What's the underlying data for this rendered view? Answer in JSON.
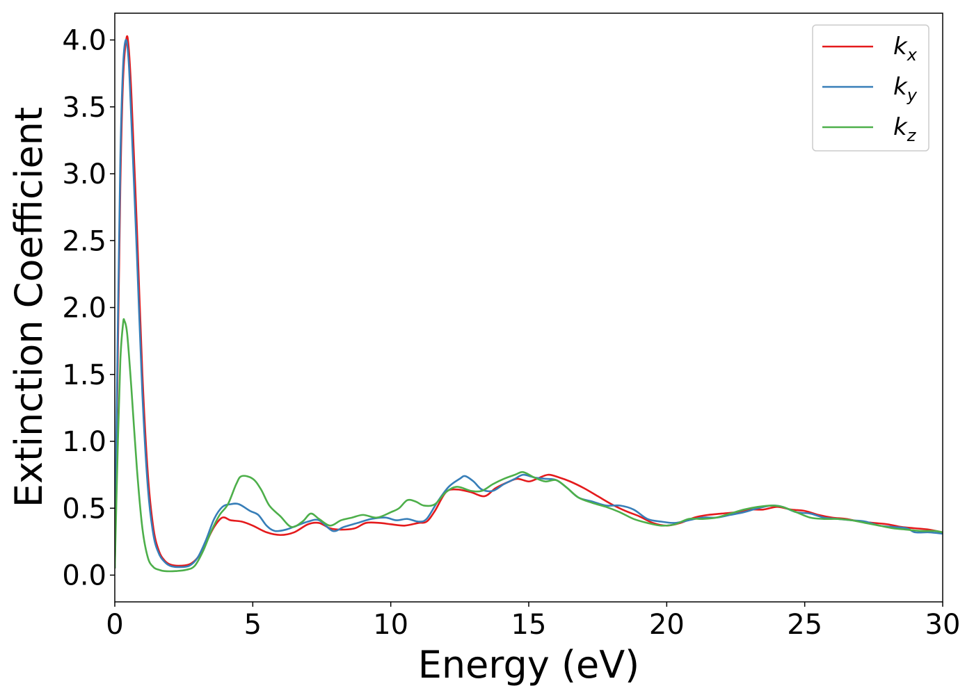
{
  "chart_data": {
    "type": "line",
    "title": "",
    "xlabel": "Energy (eV)",
    "ylabel": "Extinction Coefficient",
    "xlim": [
      0,
      30
    ],
    "ylim": [
      -0.2,
      4.2
    ],
    "xticks": [
      0,
      5,
      10,
      15,
      20,
      25,
      30
    ],
    "xtick_labels": [
      "0",
      "5",
      "10",
      "15",
      "20",
      "25",
      "30"
    ],
    "yticks": [
      0.0,
      0.5,
      1.0,
      1.5,
      2.0,
      2.5,
      3.0,
      3.5,
      4.0
    ],
    "ytick_labels": [
      "0.0",
      "0.5",
      "1.0",
      "1.5",
      "2.0",
      "2.5",
      "3.0",
      "3.5",
      "4.0"
    ],
    "grid": false,
    "legend_position": "top-right",
    "series": [
      {
        "name": "k",
        "subscript": "x",
        "color": "#e41a1c",
        "points": [
          [
            0,
            0.05
          ],
          [
            0.1,
            1.5
          ],
          [
            0.2,
            2.9
          ],
          [
            0.3,
            3.7
          ],
          [
            0.42,
            4.01
          ],
          [
            0.5,
            3.95
          ],
          [
            0.6,
            3.6
          ],
          [
            0.8,
            2.6
          ],
          [
            1.0,
            1.5
          ],
          [
            1.2,
            0.75
          ],
          [
            1.4,
            0.35
          ],
          [
            1.6,
            0.18
          ],
          [
            1.8,
            0.11
          ],
          [
            2.0,
            0.08
          ],
          [
            2.3,
            0.07
          ],
          [
            2.7,
            0.08
          ],
          [
            3.0,
            0.13
          ],
          [
            3.3,
            0.24
          ],
          [
            3.6,
            0.36
          ],
          [
            3.9,
            0.43
          ],
          [
            4.2,
            0.41
          ],
          [
            4.6,
            0.4
          ],
          [
            5.0,
            0.37
          ],
          [
            5.5,
            0.32
          ],
          [
            6.0,
            0.3
          ],
          [
            6.5,
            0.32
          ],
          [
            7.0,
            0.38
          ],
          [
            7.4,
            0.39
          ],
          [
            7.8,
            0.35
          ],
          [
            8.2,
            0.34
          ],
          [
            8.7,
            0.35
          ],
          [
            9.1,
            0.39
          ],
          [
            9.6,
            0.39
          ],
          [
            10.0,
            0.38
          ],
          [
            10.5,
            0.37
          ],
          [
            11.0,
            0.39
          ],
          [
            11.3,
            0.4
          ],
          [
            11.6,
            0.48
          ],
          [
            12.0,
            0.62
          ],
          [
            12.4,
            0.64
          ],
          [
            12.9,
            0.62
          ],
          [
            13.4,
            0.59
          ],
          [
            13.8,
            0.65
          ],
          [
            14.3,
            0.7
          ],
          [
            14.6,
            0.72
          ],
          [
            15.0,
            0.7
          ],
          [
            15.3,
            0.72
          ],
          [
            15.7,
            0.75
          ],
          [
            16.1,
            0.73
          ],
          [
            16.5,
            0.7
          ],
          [
            17.0,
            0.65
          ],
          [
            17.5,
            0.59
          ],
          [
            18.0,
            0.53
          ],
          [
            18.5,
            0.48
          ],
          [
            19.0,
            0.44
          ],
          [
            19.5,
            0.39
          ],
          [
            20.0,
            0.37
          ],
          [
            20.5,
            0.39
          ],
          [
            21.0,
            0.43
          ],
          [
            21.5,
            0.45
          ],
          [
            22.0,
            0.46
          ],
          [
            22.5,
            0.47
          ],
          [
            23.0,
            0.49
          ],
          [
            23.5,
            0.49
          ],
          [
            24.0,
            0.51
          ],
          [
            24.5,
            0.49
          ],
          [
            25.0,
            0.48
          ],
          [
            25.5,
            0.45
          ],
          [
            26.0,
            0.43
          ],
          [
            26.5,
            0.42
          ],
          [
            27.0,
            0.4
          ],
          [
            27.5,
            0.39
          ],
          [
            28.0,
            0.38
          ],
          [
            28.5,
            0.36
          ],
          [
            29.0,
            0.35
          ],
          [
            29.5,
            0.34
          ],
          [
            30.0,
            0.32
          ]
        ]
      },
      {
        "name": "k",
        "subscript": "y",
        "color": "#377eb8",
        "points": [
          [
            0,
            0.05
          ],
          [
            0.1,
            1.7
          ],
          [
            0.2,
            3.1
          ],
          [
            0.3,
            3.8
          ],
          [
            0.4,
            4.0
          ],
          [
            0.5,
            3.85
          ],
          [
            0.6,
            3.4
          ],
          [
            0.8,
            2.4
          ],
          [
            1.0,
            1.35
          ],
          [
            1.2,
            0.65
          ],
          [
            1.4,
            0.3
          ],
          [
            1.6,
            0.16
          ],
          [
            1.8,
            0.1
          ],
          [
            2.0,
            0.07
          ],
          [
            2.3,
            0.06
          ],
          [
            2.7,
            0.07
          ],
          [
            3.0,
            0.13
          ],
          [
            3.3,
            0.26
          ],
          [
            3.6,
            0.42
          ],
          [
            3.9,
            0.51
          ],
          [
            4.2,
            0.53
          ],
          [
            4.5,
            0.53
          ],
          [
            4.9,
            0.48
          ],
          [
            5.2,
            0.45
          ],
          [
            5.5,
            0.37
          ],
          [
            5.8,
            0.33
          ],
          [
            6.2,
            0.34
          ],
          [
            6.6,
            0.37
          ],
          [
            7.0,
            0.4
          ],
          [
            7.4,
            0.41
          ],
          [
            7.9,
            0.33
          ],
          [
            8.3,
            0.36
          ],
          [
            8.8,
            0.39
          ],
          [
            9.3,
            0.42
          ],
          [
            9.8,
            0.43
          ],
          [
            10.2,
            0.41
          ],
          [
            10.6,
            0.42
          ],
          [
            11.0,
            0.4
          ],
          [
            11.3,
            0.42
          ],
          [
            11.7,
            0.55
          ],
          [
            12.1,
            0.66
          ],
          [
            12.5,
            0.72
          ],
          [
            12.7,
            0.74
          ],
          [
            13.0,
            0.7
          ],
          [
            13.3,
            0.64
          ],
          [
            13.7,
            0.63
          ],
          [
            14.1,
            0.68
          ],
          [
            14.5,
            0.72
          ],
          [
            14.8,
            0.75
          ],
          [
            15.2,
            0.73
          ],
          [
            15.6,
            0.72
          ],
          [
            16.0,
            0.71
          ],
          [
            16.4,
            0.65
          ],
          [
            16.8,
            0.58
          ],
          [
            17.3,
            0.55
          ],
          [
            17.8,
            0.52
          ],
          [
            18.3,
            0.52
          ],
          [
            18.8,
            0.49
          ],
          [
            19.3,
            0.42
          ],
          [
            19.8,
            0.4
          ],
          [
            20.3,
            0.39
          ],
          [
            20.8,
            0.41
          ],
          [
            21.3,
            0.43
          ],
          [
            21.8,
            0.43
          ],
          [
            22.3,
            0.45
          ],
          [
            22.8,
            0.47
          ],
          [
            23.3,
            0.5
          ],
          [
            23.8,
            0.52
          ],
          [
            24.2,
            0.51
          ],
          [
            24.7,
            0.47
          ],
          [
            25.2,
            0.46
          ],
          [
            25.7,
            0.43
          ],
          [
            26.2,
            0.42
          ],
          [
            26.7,
            0.41
          ],
          [
            27.2,
            0.4
          ],
          [
            27.7,
            0.37
          ],
          [
            28.2,
            0.36
          ],
          [
            28.7,
            0.35
          ],
          [
            29.0,
            0.32
          ],
          [
            29.5,
            0.32
          ],
          [
            30.0,
            0.31
          ]
        ]
      },
      {
        "name": "k",
        "subscript": "z",
        "color": "#4daf4a",
        "points": [
          [
            0,
            0.05
          ],
          [
            0.1,
            0.9
          ],
          [
            0.2,
            1.6
          ],
          [
            0.3,
            1.88
          ],
          [
            0.35,
            1.9
          ],
          [
            0.45,
            1.8
          ],
          [
            0.6,
            1.4
          ],
          [
            0.8,
            0.8
          ],
          [
            1.0,
            0.35
          ],
          [
            1.2,
            0.13
          ],
          [
            1.4,
            0.06
          ],
          [
            1.6,
            0.04
          ],
          [
            1.8,
            0.03
          ],
          [
            2.2,
            0.03
          ],
          [
            2.6,
            0.04
          ],
          [
            2.9,
            0.07
          ],
          [
            3.2,
            0.18
          ],
          [
            3.5,
            0.33
          ],
          [
            3.8,
            0.45
          ],
          [
            4.1,
            0.53
          ],
          [
            4.4,
            0.68
          ],
          [
            4.6,
            0.74
          ],
          [
            5.0,
            0.72
          ],
          [
            5.3,
            0.64
          ],
          [
            5.6,
            0.52
          ],
          [
            6.0,
            0.44
          ],
          [
            6.4,
            0.36
          ],
          [
            6.8,
            0.4
          ],
          [
            7.1,
            0.46
          ],
          [
            7.4,
            0.42
          ],
          [
            7.8,
            0.37
          ],
          [
            8.2,
            0.41
          ],
          [
            8.6,
            0.43
          ],
          [
            9.0,
            0.45
          ],
          [
            9.5,
            0.43
          ],
          [
            10.0,
            0.47
          ],
          [
            10.3,
            0.5
          ],
          [
            10.6,
            0.56
          ],
          [
            10.9,
            0.55
          ],
          [
            11.2,
            0.52
          ],
          [
            11.6,
            0.53
          ],
          [
            12.0,
            0.62
          ],
          [
            12.4,
            0.66
          ],
          [
            12.9,
            0.63
          ],
          [
            13.3,
            0.63
          ],
          [
            13.7,
            0.68
          ],
          [
            14.1,
            0.72
          ],
          [
            14.5,
            0.75
          ],
          [
            14.8,
            0.77
          ],
          [
            15.2,
            0.73
          ],
          [
            15.6,
            0.7
          ],
          [
            16.0,
            0.71
          ],
          [
            16.4,
            0.65
          ],
          [
            16.8,
            0.58
          ],
          [
            17.3,
            0.54
          ],
          [
            17.8,
            0.51
          ],
          [
            18.3,
            0.47
          ],
          [
            18.8,
            0.42
          ],
          [
            19.3,
            0.39
          ],
          [
            19.8,
            0.37
          ],
          [
            20.3,
            0.38
          ],
          [
            20.8,
            0.42
          ],
          [
            21.3,
            0.42
          ],
          [
            21.8,
            0.43
          ],
          [
            22.3,
            0.46
          ],
          [
            22.8,
            0.49
          ],
          [
            23.3,
            0.51
          ],
          [
            23.8,
            0.52
          ],
          [
            24.2,
            0.51
          ],
          [
            24.7,
            0.47
          ],
          [
            25.2,
            0.43
          ],
          [
            25.7,
            0.42
          ],
          [
            26.2,
            0.42
          ],
          [
            26.7,
            0.41
          ],
          [
            27.2,
            0.39
          ],
          [
            27.7,
            0.37
          ],
          [
            28.2,
            0.35
          ],
          [
            28.7,
            0.34
          ],
          [
            29.2,
            0.33
          ],
          [
            29.7,
            0.33
          ],
          [
            30.0,
            0.32
          ]
        ]
      }
    ]
  }
}
